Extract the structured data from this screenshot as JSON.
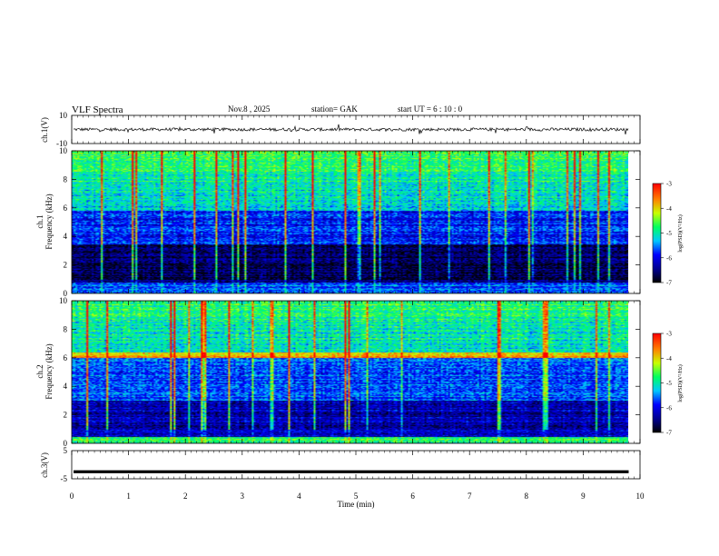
{
  "header": {
    "title": "VLF  Spectra",
    "date": "Nov.8  , 2025",
    "station": "station= GAK",
    "start": "start  UT  =    6  : 10 : 0"
  },
  "chart_data": [
    {
      "type": "line",
      "panel": "ch1-waveform",
      "ylabel": "ch.1(V)",
      "ylim": [
        -10,
        10
      ],
      "yticks": [
        "10",
        "-10"
      ],
      "baseline_value": 0,
      "xlim": [
        0,
        10
      ]
    },
    {
      "type": "heatmap",
      "panel": "ch1-spectrogram",
      "ylabel_line1": "ch.1",
      "ylabel_line2": "Frequency  (kHz)",
      "ylim": [
        0,
        10
      ],
      "yticks": [
        "0",
        "2",
        "4",
        "6",
        "8",
        "10"
      ],
      "xlim": [
        0,
        10
      ],
      "data_end_min": 9.8,
      "colorbar": {
        "label": "log(PSD)(V²/Hz)",
        "ticks": [
          "-3",
          "-4",
          "-5",
          "-6",
          "-7"
        ],
        "range": [
          -7,
          -3
        ]
      }
    },
    {
      "type": "heatmap",
      "panel": "ch2-spectrogram",
      "ylabel_line1": "ch.2",
      "ylabel_line2": "Frequency  (kHz)",
      "ylim": [
        0,
        10
      ],
      "yticks": [
        "0",
        "2",
        "4",
        "6",
        "8",
        "10"
      ],
      "xlim": [
        0,
        10
      ],
      "data_end_min": 9.8,
      "colorbar": {
        "label": "log(PSD)(V²/Hz)",
        "ticks": [
          "-3",
          "-4",
          "-5",
          "-6",
          "-7"
        ],
        "range": [
          -7,
          -3
        ]
      }
    },
    {
      "type": "line",
      "panel": "ch3-waveform",
      "ylabel": "ch.3(V)",
      "ylim": [
        -5,
        5
      ],
      "yticks": [
        "5",
        "-5"
      ],
      "baseline_value": -2.5,
      "xlim": [
        0,
        10
      ],
      "xlabel": "Time  (min)",
      "xticks": [
        "0",
        "1",
        "2",
        "3",
        "4",
        "5",
        "6",
        "7",
        "8",
        "9",
        "10"
      ]
    }
  ]
}
